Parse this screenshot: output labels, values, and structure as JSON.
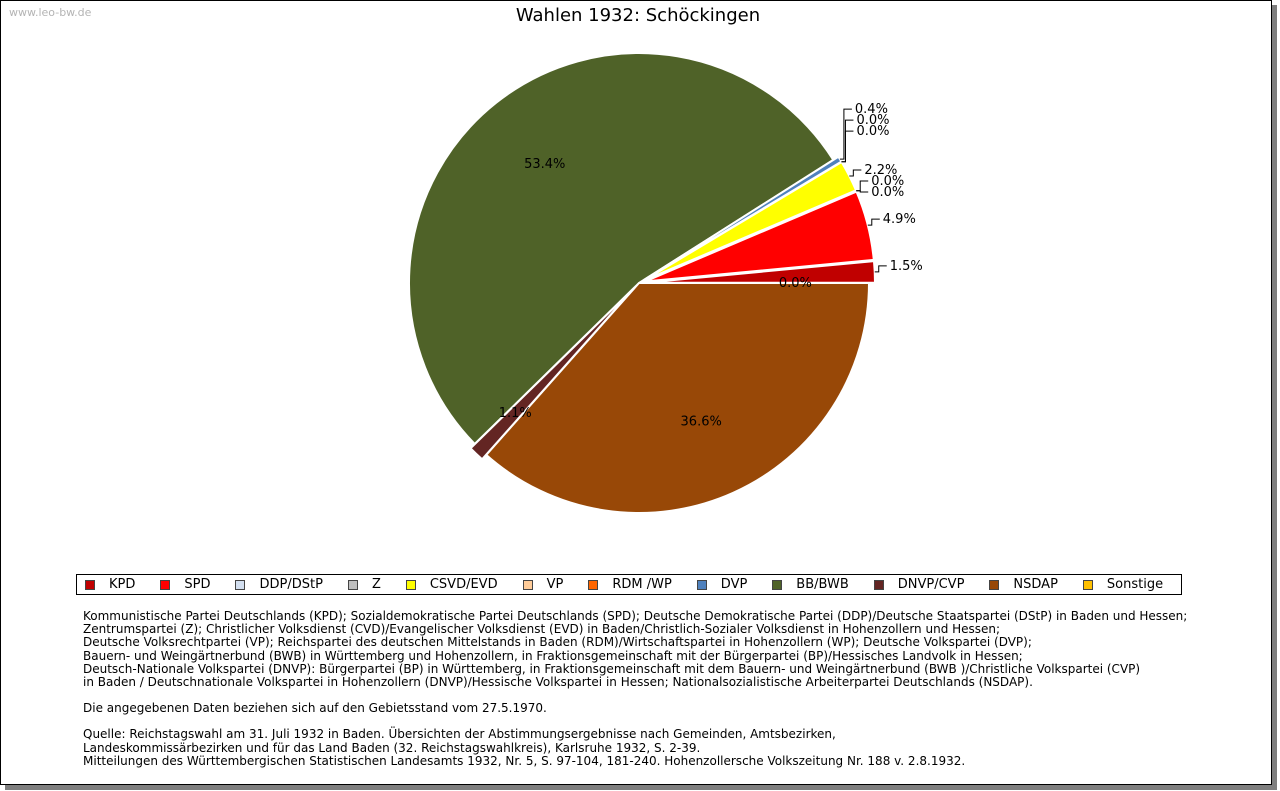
{
  "watermark": "www.leo-bw.de",
  "colors": {
    "label_line": "#000000"
  },
  "chart_data": {
    "type": "pie",
    "title": "Wahlen 1932: Schöckingen",
    "start_angle_deg": 0,
    "direction": "counterclockwise",
    "slices": [
      {
        "name": "KPD",
        "value": 1.5,
        "label": "1.5%",
        "color": "#c00000",
        "exploded": true
      },
      {
        "name": "SPD",
        "value": 4.9,
        "label": "4.9%",
        "color": "#ff0000",
        "exploded": true
      },
      {
        "name": "DDP/DStP",
        "value": 0.0,
        "label": "0.0%",
        "color": "#d3dff0",
        "exploded": true
      },
      {
        "name": "Z",
        "value": 0.0,
        "label": "0.0%",
        "color": "#bfbfbf",
        "exploded": true
      },
      {
        "name": "CSVD/EVD",
        "value": 2.2,
        "label": "2.2%",
        "color": "#ffff00",
        "exploded": true
      },
      {
        "name": "VP",
        "value": 0.0,
        "label": "0.0%",
        "color": "#ffcc99",
        "exploded": true
      },
      {
        "name": "RDM /WP",
        "value": 0.0,
        "label": "0.0%",
        "color": "#ff6600",
        "exploded": true
      },
      {
        "name": "DVP",
        "value": 0.4,
        "label": "0.4%",
        "color": "#4f81bd",
        "exploded": true
      },
      {
        "name": "BB/BWB",
        "value": 53.4,
        "label": "53.4%",
        "color": "#4f6228",
        "exploded": false
      },
      {
        "name": "DNVP/CVP",
        "value": 1.1,
        "label": "1.1%",
        "color": "#632523",
        "exploded": true
      },
      {
        "name": "NSDAP",
        "value": 36.6,
        "label": "36.6%",
        "color": "#984807",
        "exploded": false
      },
      {
        "name": "Sonstige",
        "value": 0.0,
        "label": "0.0%",
        "color": "#ffc000",
        "exploded": false
      }
    ],
    "legend_position": "bottom"
  },
  "notes": {
    "party_lines": [
      "Kommunistische Partei Deutschlands (KPD); Sozialdemokratische Partei Deutschlands (SPD); Deutsche Demokratische Partei (DDP)/Deutsche Staatspartei (DStP) in Baden und Hessen;",
      "Zentrumspartei (Z); Christlicher Volksdienst (CVD)/Evangelischer Volksdienst (EVD) in Baden/Christlich-Sozialer Volksdienst in Hohenzollern und Hessen;",
      "Deutsche Volksrechtpartei (VP); Reichspartei des deutschen Mittelstands in Baden (RDM)/Wirtschaftspartei in Hohenzollern (WP); Deutsche Volkspartei (DVP);",
      "Bauern- und Weingärtnerbund (BWB) in Württemberg und Hohenzollern, in Fraktionsgemeinschaft mit der Bürgerpartei (BP)/Hessisches Landvolk in Hessen;",
      "Deutsch-Nationale Volkspartei (DNVP): Bürgerpartei (BP) in Württemberg, in Fraktionsgemeinschaft mit dem Bauern- und Weingärtnerbund (BWB )/Christliche Volkspartei (CVP)",
      "in Baden / Deutschnationale Volkspartei in Hohenzollern (DNVP)/Hessische Volkspartei in Hessen; Nationalsozialistische Arbeiterpartei Deutschlands (NSDAP)."
    ],
    "territory_line": "Die angegebenen Daten beziehen sich auf den Gebietsstand vom 27.5.1970.",
    "source_lines": [
      "Quelle: Reichstagswahl am 31. Juli 1932 in Baden. Übersichten der Abstimmungsergebnisse nach Gemeinden, Amtsbezirken,",
      "Landeskommissärbezirken und für das Land Baden (32. Reichstagswahlkreis), Karlsruhe 1932, S. 2-39.",
      "Mitteilungen des Württembergischen Statistischen Landesamts 1932, Nr. 5, S. 97-104, 181-240. Hohenzollersche Volkszeitung Nr. 188 v. 2.8.1932."
    ]
  }
}
